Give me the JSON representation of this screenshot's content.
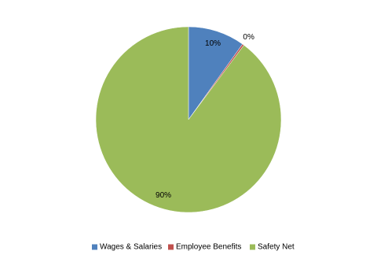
{
  "chart_data": {
    "type": "pie",
    "categories": [
      "Wages & Salaries",
      "Employee Benefits",
      "Safety Net"
    ],
    "values": [
      9.9,
      0.3,
      89.8
    ],
    "value_labels": [
      "10%",
      "0%",
      "90%"
    ],
    "colors": [
      "#4f81bd",
      "#c0504d",
      "#9bbb59"
    ],
    "legend": "bottom"
  }
}
